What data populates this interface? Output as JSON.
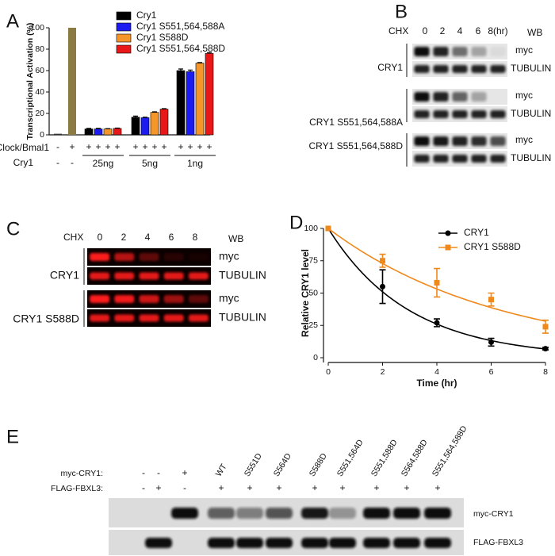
{
  "chart_data": [
    {
      "type": "bar",
      "panel_label": "A",
      "ylabel": "Transcriptional Activation (%)",
      "ylim": [
        0,
        100
      ],
      "yticks": [
        0,
        20,
        40,
        60,
        80,
        100
      ],
      "controls": [
        {
          "color": "#333333",
          "value": 1
        },
        {
          "color": "#8c7a45",
          "value": 100
        }
      ],
      "categories": [
        "25ng",
        "5ng",
        "1ng"
      ],
      "series": [
        {
          "name": "Cry1",
          "color": "#000000",
          "values": [
            5.5,
            16.5,
            60
          ],
          "errors": [
            0.5,
            1,
            1.5
          ]
        },
        {
          "name": "Cry1 S551,564,588A",
          "color": "#1c1cf0",
          "values": [
            5.5,
            16,
            59
          ],
          "errors": [
            0.5,
            0.5,
            1.5
          ]
        },
        {
          "name": "Cry1 S588D",
          "color": "#f5962a",
          "values": [
            5.5,
            21,
            67
          ],
          "errors": [
            0.3,
            0.5,
            0.5
          ]
        },
        {
          "name": "Cry1 S551,564,588D",
          "color": "#e81818",
          "values": [
            6,
            24,
            76
          ],
          "errors": [
            0.3,
            0.5,
            0.8
          ]
        }
      ],
      "row1_label": "Clock/Bmal1",
      "row1_signs": [
        "-",
        "+",
        "+",
        "+",
        "+",
        "+",
        "+",
        "+",
        "+",
        "+",
        "+",
        "+",
        "+",
        "+"
      ],
      "row2_label": "Cry1",
      "row2_signs": [
        "-",
        "-"
      ]
    },
    {
      "type": "line",
      "panel_label": "D",
      "ylabel": "Relative CRY1 level",
      "xlabel": "Time (hr)",
      "x": [
        0,
        2,
        4,
        6,
        8
      ],
      "xlim": [
        0,
        8
      ],
      "xticks": [
        0,
        2,
        4,
        6,
        8
      ],
      "ylim": [
        0,
        100
      ],
      "yticks": [
        0,
        25,
        50,
        75,
        100
      ],
      "series": [
        {
          "name": "CRY1",
          "color": "#000000",
          "values": [
            100,
            55,
            27,
            12,
            7
          ],
          "errors": [
            0,
            13,
            3,
            3,
            1
          ]
        },
        {
          "name": "CRY1 S588D",
          "color": "#f0891c",
          "values": [
            100,
            75,
            58,
            45,
            24
          ],
          "errors": [
            0,
            5,
            11,
            5,
            5
          ]
        }
      ]
    }
  ],
  "panel_b": {
    "label": "B",
    "chx": "CHX",
    "times": [
      "0",
      "2",
      "4",
      "6",
      "8(hr)"
    ],
    "wb": "WB",
    "groups": [
      "CRY1",
      "CRY1 S551,564,588A",
      "CRY1 S551,564,588D"
    ],
    "myc": "myc",
    "tubulin": "TUBULIN"
  },
  "panel_c": {
    "label": "C",
    "chx": "CHX",
    "times": [
      "0",
      "2",
      "4",
      "6",
      "8"
    ],
    "wb": "WB",
    "groups": [
      "CRY1",
      "CRY1 S588D"
    ],
    "myc": "myc",
    "tubulin": "TUBULIN"
  },
  "panel_e": {
    "label": "E",
    "row1_label": "myc-CRY1:",
    "row2_label": "FLAG-FBXL3:",
    "row1": [
      "-",
      "-",
      "+",
      "WT",
      "S551D",
      "S564D",
      "S588D",
      "S551,564D",
      "S551,588D",
      "S564,588D",
      "S551,564,588D"
    ],
    "row2": [
      "-",
      "+",
      "-",
      "+",
      "+",
      "+",
      "+",
      "+",
      "+",
      "+",
      "+"
    ],
    "blot1": "myc-CRY1",
    "blot2": "FLAG-FBXL3"
  }
}
